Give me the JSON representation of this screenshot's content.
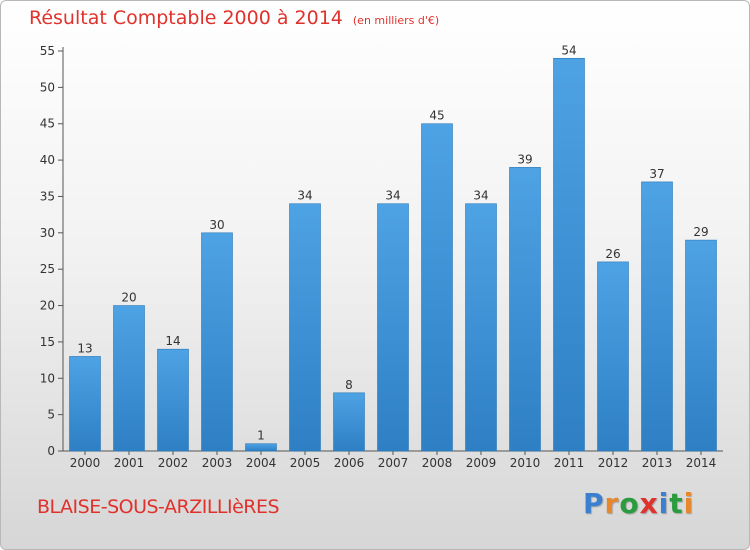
{
  "title": "Résultat Comptable 2000 à 2014",
  "unit_note": "(en milliers d'€)",
  "town": "BLAISE-SOUS-ARZILLIèRES",
  "brand": {
    "letters": [
      "P",
      "r",
      "o",
      "x",
      "i",
      "t",
      "i"
    ],
    "colors": [
      "#3b7fd1",
      "#e8862a",
      "#2a9c3e",
      "#e0322c",
      "#3b7fd1",
      "#2a9c3e",
      "#e8862a"
    ]
  },
  "colors": {
    "bar": "#4ea3e4",
    "bar_dark": "#2e7fc4",
    "title": "#e0322c"
  },
  "chart_data": {
    "type": "bar",
    "title": "Résultat Comptable 2000 à 2014",
    "categories": [
      "2000",
      "2001",
      "2002",
      "2003",
      "2004",
      "2005",
      "2006",
      "2007",
      "2008",
      "2009",
      "2010",
      "2011",
      "2012",
      "2013",
      "2014"
    ],
    "values": [
      13,
      20,
      14,
      30,
      1,
      34,
      8,
      34,
      45,
      34,
      39,
      54,
      26,
      37,
      29
    ],
    "xlabel": "",
    "ylabel": "",
    "ylim": [
      0,
      55
    ],
    "yticks": [
      0,
      5,
      10,
      15,
      20,
      25,
      30,
      35,
      40,
      45,
      50,
      55
    ],
    "grid": false,
    "legend": "none"
  }
}
